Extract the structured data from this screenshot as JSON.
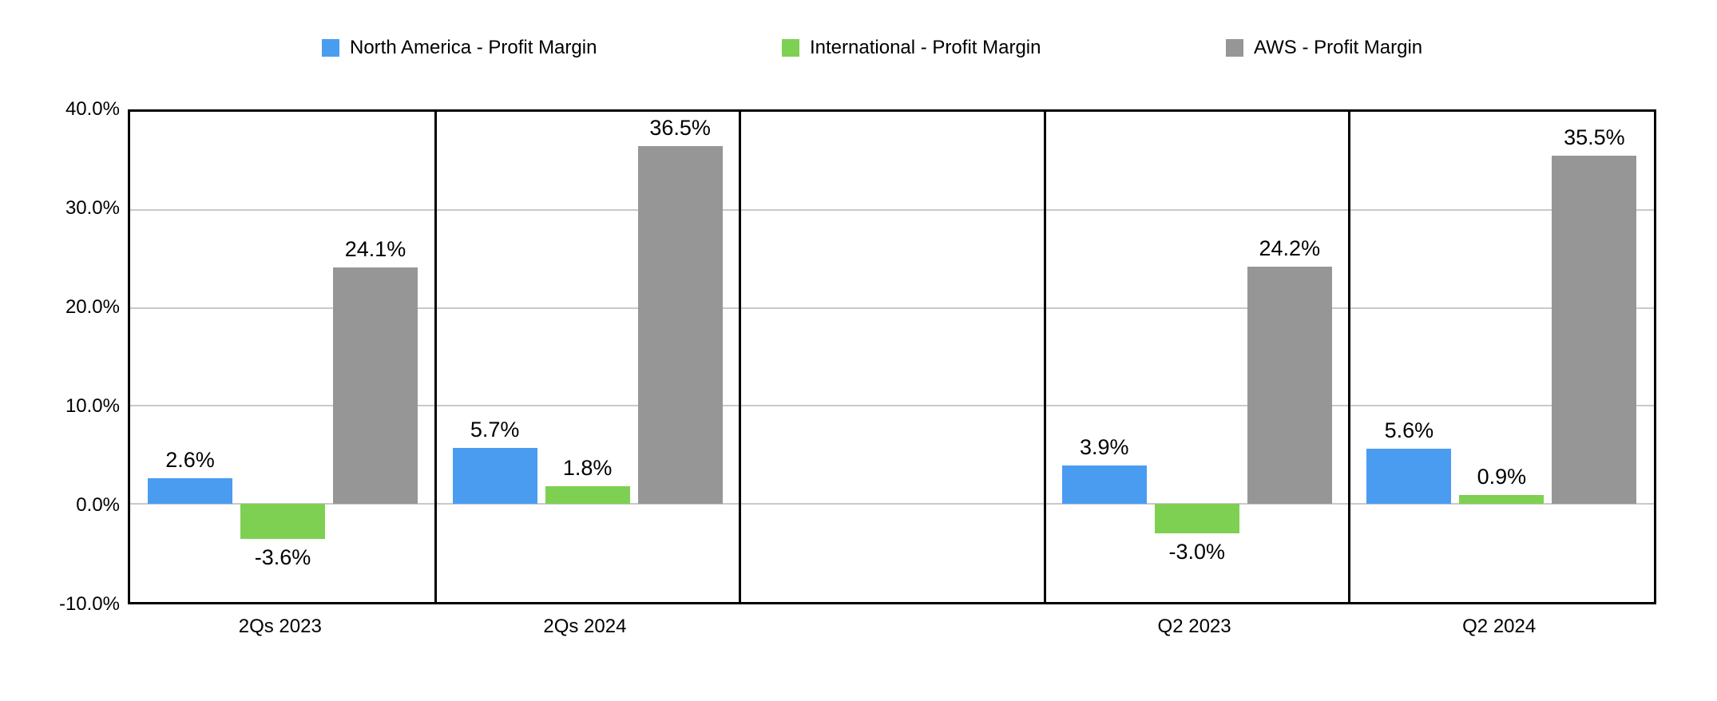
{
  "chart_data": {
    "type": "bar",
    "title": "",
    "categories": [
      "2Qs 2023",
      "2Qs 2024",
      "",
      "Q2 2023",
      "Q2 2024"
    ],
    "series": [
      {
        "name": "North America - Profit Margin",
        "color": "#4A9CF1",
        "values": [
          2.6,
          5.7,
          null,
          3.9,
          5.6
        ],
        "labels": [
          "2.6%",
          "5.7%",
          null,
          "3.9%",
          "5.6%"
        ]
      },
      {
        "name": "International - Profit Margin",
        "color": "#7ED052",
        "values": [
          -3.6,
          1.8,
          null,
          -3.0,
          0.9
        ],
        "labels": [
          "-3.6%",
          "1.8%",
          null,
          "-3.0%",
          "0.9%"
        ]
      },
      {
        "name": "AWS - Profit Margin",
        "color": "#969696",
        "values": [
          24.1,
          36.5,
          null,
          24.2,
          35.5
        ],
        "labels": [
          "24.1%",
          "36.5%",
          null,
          "24.2%",
          "35.5%"
        ]
      }
    ],
    "y_axis": {
      "ticks": [
        {
          "value": 40,
          "label": "40.0%"
        },
        {
          "value": 30,
          "label": "30.0%"
        },
        {
          "value": 20,
          "label": "20.0%"
        },
        {
          "value": 10,
          "label": "10.0%"
        },
        {
          "value": 0,
          "label": "0.0%"
        },
        {
          "value": -10,
          "label": "-10.0%"
        }
      ]
    },
    "ylim": [
      -10,
      40
    ],
    "grid": true,
    "legend_position": "top"
  },
  "colors": {
    "axis": "#000000",
    "grid": "#C9C9C9",
    "background": "#FFFFFF",
    "text": "#000000"
  }
}
